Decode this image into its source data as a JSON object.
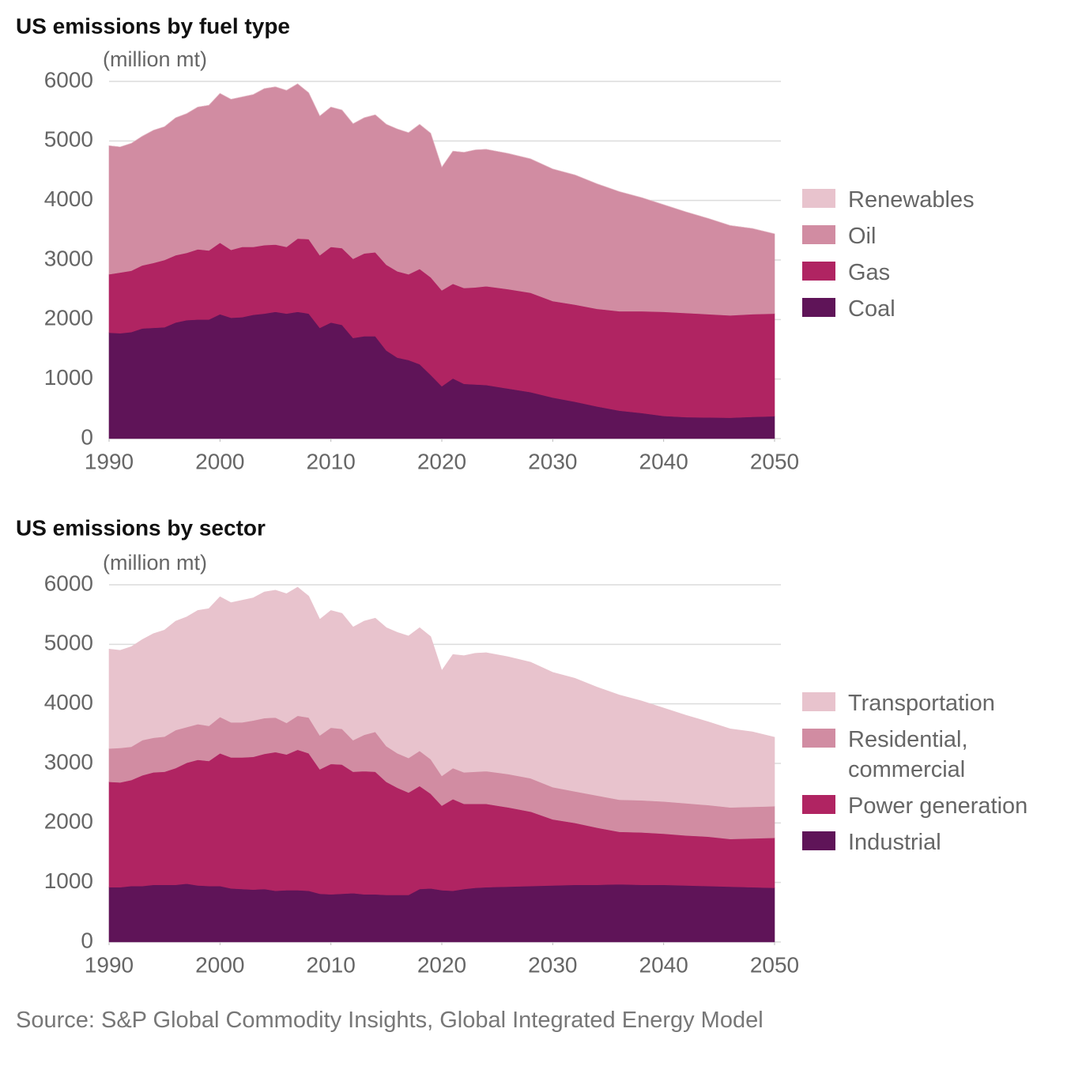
{
  "chart_data": [
    {
      "type": "area",
      "stacked": true,
      "title": "US emissions by fuel type",
      "y_label": "(million mt)",
      "x": [
        1990,
        1991,
        1992,
        1993,
        1994,
        1995,
        1996,
        1997,
        1998,
        1999,
        2000,
        2001,
        2002,
        2003,
        2004,
        2005,
        2006,
        2007,
        2008,
        2009,
        2010,
        2011,
        2012,
        2013,
        2014,
        2015,
        2016,
        2017,
        2018,
        2019,
        2020,
        2021,
        2022,
        2023,
        2024,
        2026,
        2028,
        2030,
        2032,
        2034,
        2036,
        2038,
        2040,
        2042,
        2044,
        2046,
        2048,
        2050
      ],
      "series": [
        {
          "name": "Coal",
          "color": "#5f1458",
          "values": [
            1780,
            1770,
            1790,
            1850,
            1860,
            1870,
            1950,
            1990,
            2000,
            2000,
            2090,
            2030,
            2040,
            2080,
            2100,
            2130,
            2100,
            2130,
            2100,
            1860,
            1950,
            1910,
            1690,
            1720,
            1720,
            1480,
            1360,
            1320,
            1250,
            1070,
            880,
            1010,
            920,
            910,
            900,
            840,
            780,
            690,
            620,
            540,
            470,
            430,
            380,
            360,
            355,
            350,
            365,
            375
          ]
        },
        {
          "name": "Gas",
          "color": "#b02462",
          "values": [
            980,
            1020,
            1030,
            1060,
            1090,
            1130,
            1130,
            1130,
            1180,
            1160,
            1200,
            1140,
            1180,
            1140,
            1150,
            1130,
            1120,
            1230,
            1250,
            1220,
            1270,
            1290,
            1330,
            1390,
            1410,
            1440,
            1450,
            1440,
            1600,
            1640,
            1610,
            1590,
            1610,
            1630,
            1660,
            1670,
            1670,
            1620,
            1630,
            1640,
            1670,
            1710,
            1750,
            1750,
            1735,
            1720,
            1725,
            1725
          ]
        },
        {
          "name": "Oil",
          "color": "#d18ca2",
          "values": [
            2160,
            2110,
            2140,
            2170,
            2230,
            2240,
            2310,
            2340,
            2390,
            2440,
            2510,
            2530,
            2520,
            2560,
            2630,
            2650,
            2630,
            2600,
            2460,
            2340,
            2350,
            2320,
            2270,
            2280,
            2310,
            2360,
            2390,
            2380,
            2430,
            2420,
            2070,
            2230,
            2280,
            2310,
            2300,
            2280,
            2250,
            2220,
            2180,
            2100,
            2010,
            1910,
            1800,
            1700,
            1610,
            1510,
            1440,
            1340
          ]
        },
        {
          "name": "Renewables",
          "color": "#e8c3cd",
          "values": [
            0,
            0,
            0,
            0,
            0,
            0,
            0,
            0,
            0,
            0,
            0,
            0,
            0,
            0,
            0,
            0,
            0,
            0,
            0,
            0,
            0,
            0,
            0,
            0,
            0,
            0,
            0,
            0,
            0,
            0,
            0,
            0,
            0,
            0,
            0,
            0,
            0,
            0,
            0,
            0,
            0,
            0,
            0,
            0,
            0,
            0,
            0,
            0
          ]
        }
      ],
      "xlim": [
        1990,
        2050
      ],
      "xticks": [
        1990,
        2000,
        2010,
        2020,
        2030,
        2040,
        2050
      ],
      "ylim": [
        0,
        6000
      ],
      "yticks": [
        0,
        1000,
        2000,
        3000,
        4000,
        5000,
        6000
      ],
      "grid": true
    },
    {
      "type": "area",
      "stacked": true,
      "title": "US emissions by sector",
      "y_label": "(million mt)",
      "x": [
        1990,
        1991,
        1992,
        1993,
        1994,
        1995,
        1996,
        1997,
        1998,
        1999,
        2000,
        2001,
        2002,
        2003,
        2004,
        2005,
        2006,
        2007,
        2008,
        2009,
        2010,
        2011,
        2012,
        2013,
        2014,
        2015,
        2016,
        2017,
        2018,
        2019,
        2020,
        2021,
        2022,
        2023,
        2024,
        2026,
        2028,
        2030,
        2032,
        2034,
        2036,
        2038,
        2040,
        2042,
        2044,
        2046,
        2048,
        2050
      ],
      "series": [
        {
          "name": "Industrial",
          "color": "#5f1458",
          "values": [
            920,
            920,
            940,
            940,
            960,
            960,
            960,
            980,
            950,
            940,
            940,
            900,
            890,
            880,
            890,
            860,
            870,
            870,
            860,
            810,
            800,
            810,
            820,
            800,
            800,
            790,
            790,
            790,
            890,
            900,
            870,
            860,
            890,
            910,
            920,
            930,
            940,
            950,
            960,
            960,
            970,
            960,
            960,
            950,
            940,
            930,
            920,
            910
          ]
        },
        {
          "name": "Power generation",
          "color": "#b02462",
          "values": [
            1770,
            1760,
            1780,
            1860,
            1890,
            1900,
            1960,
            2030,
            2110,
            2100,
            2230,
            2200,
            2210,
            2230,
            2270,
            2330,
            2280,
            2360,
            2310,
            2090,
            2190,
            2170,
            2040,
            2070,
            2060,
            1900,
            1800,
            1720,
            1730,
            1590,
            1420,
            1540,
            1430,
            1410,
            1400,
            1330,
            1250,
            1110,
            1040,
            960,
            880,
            880,
            860,
            840,
            830,
            800,
            820,
            840
          ]
        },
        {
          "name": "Residential, commercial",
          "color": "#d18ca2",
          "values": [
            560,
            580,
            560,
            590,
            580,
            590,
            640,
            600,
            600,
            590,
            610,
            590,
            590,
            610,
            600,
            580,
            530,
            570,
            600,
            570,
            610,
            600,
            530,
            610,
            670,
            600,
            580,
            580,
            590,
            580,
            500,
            520,
            530,
            540,
            550,
            560,
            560,
            540,
            530,
            540,
            540,
            540,
            540,
            540,
            530,
            530,
            530,
            530
          ]
        },
        {
          "name": "Transportation",
          "color": "#e8c3cd",
          "values": [
            1670,
            1640,
            1680,
            1690,
            1750,
            1790,
            1830,
            1850,
            1910,
            1970,
            2020,
            2010,
            2050,
            2060,
            2120,
            2140,
            2170,
            2160,
            2040,
            1950,
            1970,
            1940,
            1900,
            1910,
            1910,
            1990,
            2030,
            2050,
            2070,
            2060,
            1770,
            1910,
            1960,
            1990,
            1990,
            1970,
            1950,
            1930,
            1900,
            1820,
            1760,
            1670,
            1570,
            1480,
            1400,
            1320,
            1260,
            1160
          ]
        }
      ],
      "xlim": [
        1990,
        2050
      ],
      "xticks": [
        1990,
        2000,
        2010,
        2020,
        2030,
        2040,
        2050
      ],
      "ylim": [
        0,
        6000
      ],
      "yticks": [
        0,
        1000,
        2000,
        3000,
        4000,
        5000,
        6000
      ],
      "grid": true
    }
  ],
  "source": "Source: S&P Global Commodity Insights, Global Integrated Energy Model"
}
